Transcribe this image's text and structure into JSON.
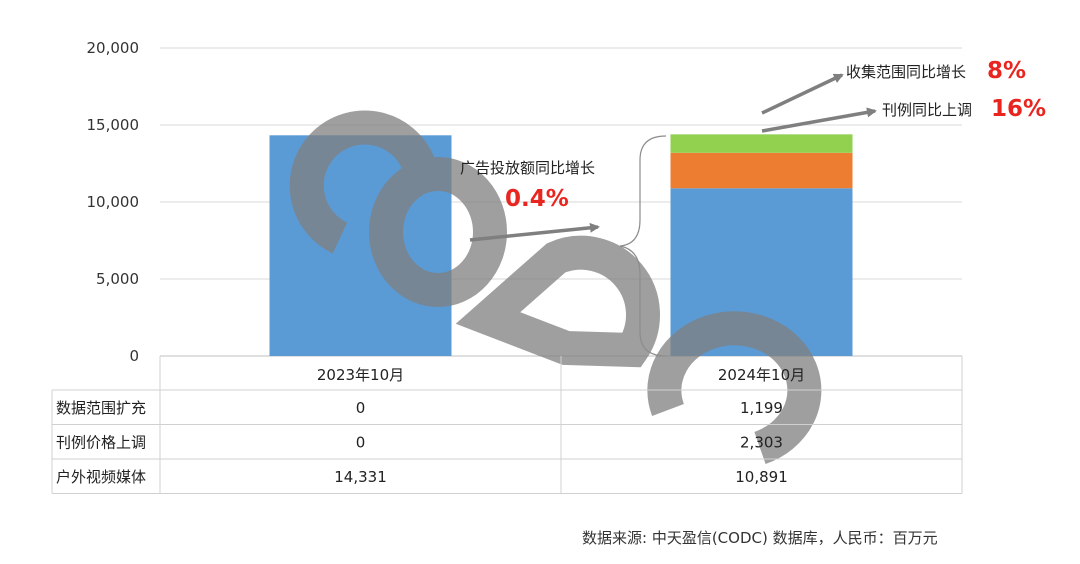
{
  "chart_data": {
    "type": "bar",
    "stacked": true,
    "categories": [
      "2023年10月",
      "2024年10月"
    ],
    "series": [
      {
        "name": "户外视频媒体",
        "values": [
          14331,
          10891
        ],
        "color": "#5b9bd5"
      },
      {
        "name": "刊例价格上调",
        "values": [
          0,
          2303
        ],
        "color": "#ed7d31"
      },
      {
        "name": "数据范围扩充",
        "values": [
          0,
          1199
        ],
        "color": "#92d050"
      }
    ],
    "ylim": [
      0,
      20000
    ],
    "yticks": [
      "0",
      "5,000",
      "10,000",
      "15,000",
      "20,000"
    ],
    "grid": true,
    "data_table": {
      "rows": [
        {
          "label": "数据范围扩充",
          "values": [
            "0",
            "1,199"
          ]
        },
        {
          "label": "刊例价格上调",
          "values": [
            "0",
            "2,303"
          ]
        },
        {
          "label": "户外视频媒体",
          "values": [
            "14,331",
            "10,891"
          ]
        }
      ]
    },
    "annotations": [
      {
        "text": "广告投放额同比增长",
        "value": "0.4%"
      },
      {
        "text": "收集范围同比增长",
        "value": "8%"
      },
      {
        "text": "刊例同比上调",
        "value": "16%"
      }
    ],
    "watermark": "CODC"
  },
  "source": "数据来源: 中天盈信(CODC) 数据库，人民币：百万元"
}
